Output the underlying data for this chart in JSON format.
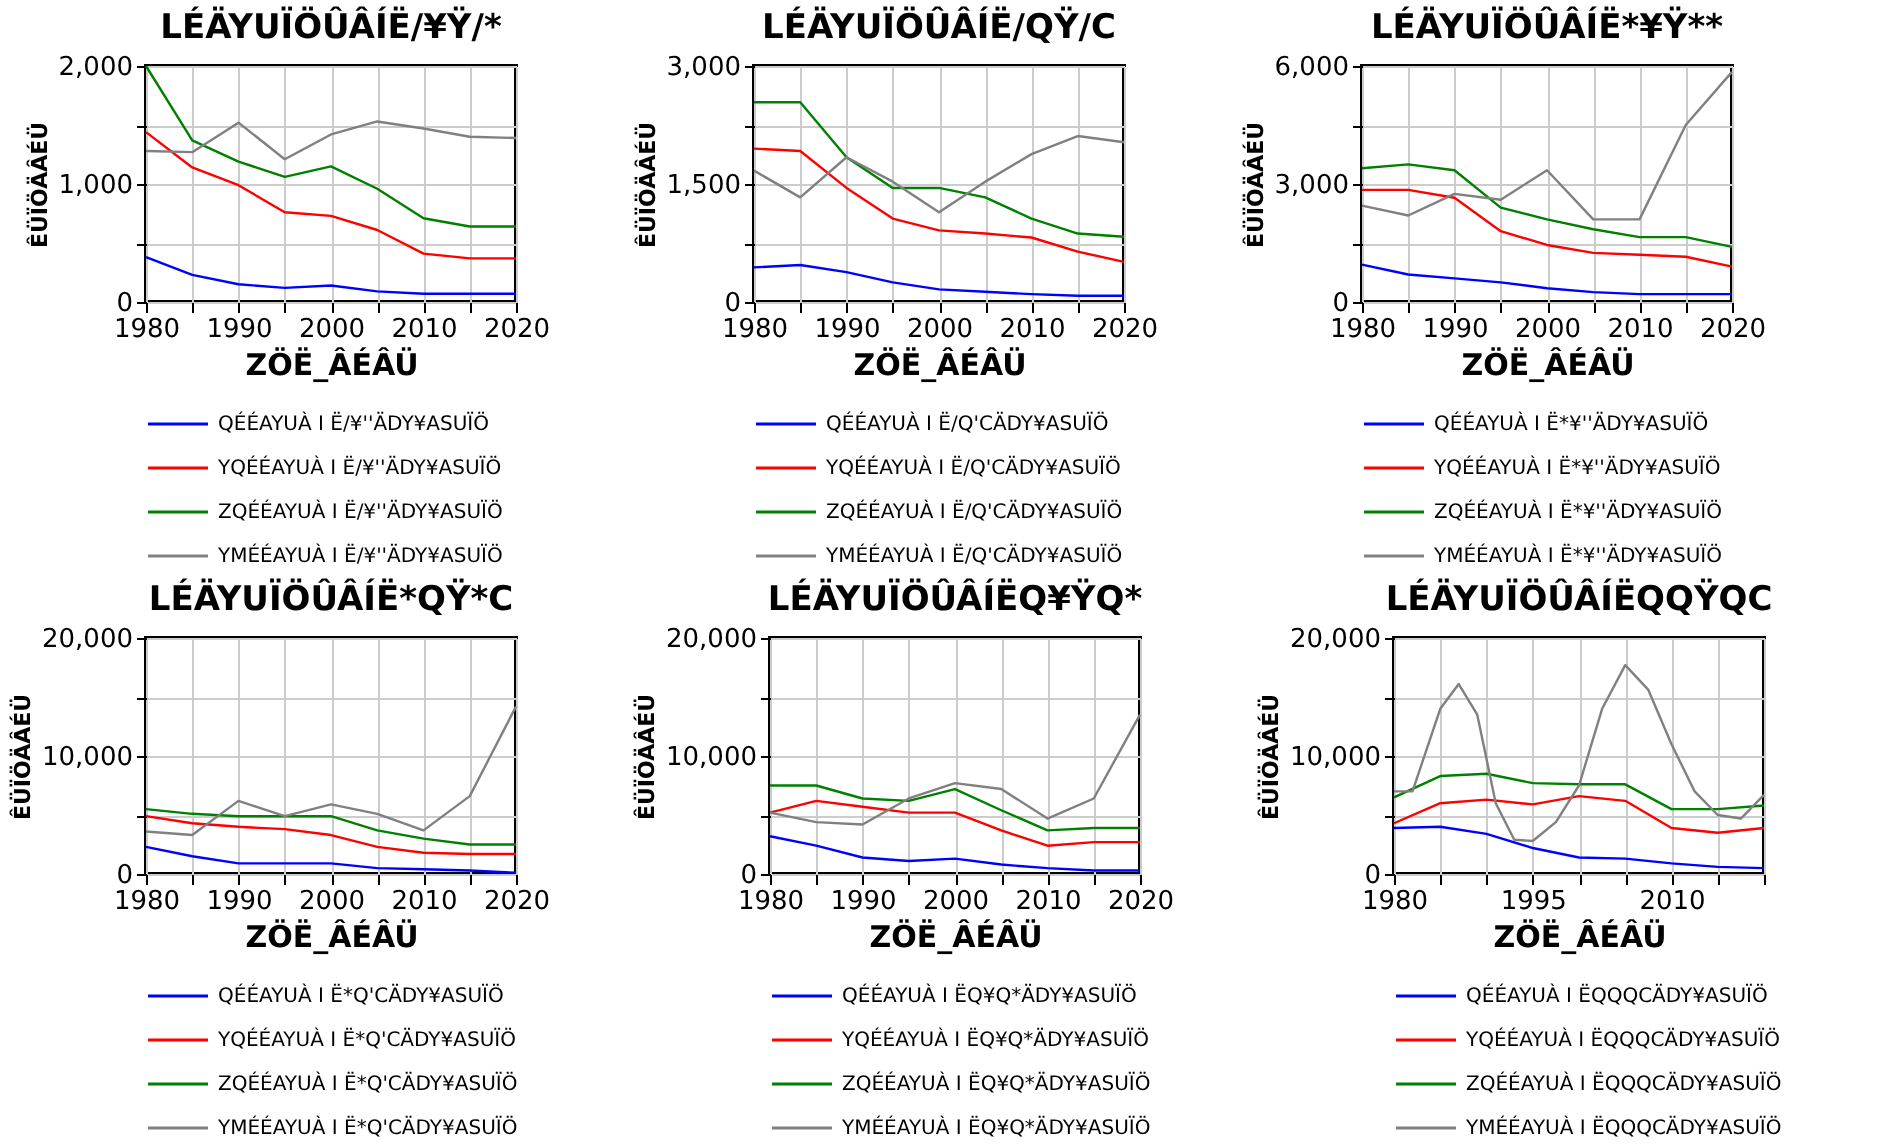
{
  "chart_data": [
    {
      "type": "line",
      "title": "LÉÄYUÏÖÛÂÍË/¥Ÿ/*",
      "xlabel": "ZÖË_ÂÉÂÜ",
      "ylabel": "ÊÜÏÖÄÂÉÜ",
      "grid": true,
      "legend": "bottom",
      "line_style": "solid",
      "x": [
        1980,
        1985,
        1990,
        1995,
        2000,
        2005,
        2010,
        2015,
        2020
      ],
      "xlim": [
        1980,
        2020
      ],
      "xticks": [
        1980,
        {
          "value": 1985,
          "label": null
        },
        1990,
        {
          "value": 1995,
          "label": null
        },
        2000,
        {
          "value": 2005,
          "label": null
        },
        2010,
        {
          "value": 2015,
          "label": null
        },
        2020
      ],
      "ylim": [
        0,
        2000
      ],
      "yticks": [
        0,
        {
          "value": 500,
          "label": null
        },
        {
          "value": 1000,
          "label": "1,000"
        },
        {
          "value": 1500,
          "label": null
        },
        {
          "value": 2000,
          "label": "2,000"
        }
      ],
      "series": [
        {
          "name": "QÉÉAYUÀ I Ë/¥''ÄDY¥ASUÏÖ",
          "color": "#0000ff",
          "values": [
            380,
            230,
            150,
            120,
            140,
            90,
            70,
            70,
            70
          ]
        },
        {
          "name": "YQÉÉAYUÀ I Ë/¥''ÄDY¥ASUÏÖ",
          "color": "#ff0000",
          "values": [
            1440,
            1140,
            990,
            760,
            730,
            610,
            410,
            370,
            370
          ]
        },
        {
          "name": "ZQÉÉAYUÀ I Ë/¥''ÄDY¥ASUÏÖ",
          "color": "#008000",
          "values": [
            2000,
            1370,
            1190,
            1060,
            1150,
            960,
            710,
            640,
            640
          ]
        },
        {
          "name": "YMÉÉAYUÀ I Ë/¥''ÄDY¥ASUÏÖ",
          "color": "#808080",
          "values": [
            1280,
            1270,
            1520,
            1210,
            1420,
            1530,
            1470,
            1400,
            1390
          ]
        }
      ]
    },
    {
      "type": "line",
      "title": "LÉÄYUÏÖÛÂÍË/QŸ/C",
      "xlabel": "ZÖË_ÂÉÂÜ",
      "ylabel": "ÊÜÏÖÄÂÉÜ",
      "grid": true,
      "legend": "bottom",
      "line_style": "solid",
      "x": [
        1980,
        1985,
        1990,
        1995,
        2000,
        2005,
        2010,
        2015,
        2020
      ],
      "xlim": [
        1980,
        2020
      ],
      "xticks": [
        1980,
        {
          "value": 1985,
          "label": null
        },
        1990,
        {
          "value": 1995,
          "label": null
        },
        2000,
        {
          "value": 2005,
          "label": null
        },
        2010,
        {
          "value": 2015,
          "label": null
        },
        2020
      ],
      "ylim": [
        0,
        3000
      ],
      "yticks": [
        0,
        {
          "value": 750,
          "label": null
        },
        {
          "value": 1500,
          "label": "1,500"
        },
        {
          "value": 2250,
          "label": null
        },
        {
          "value": 3000,
          "label": "3,000"
        }
      ],
      "series": [
        {
          "name": "QÉÉAYUÀ I Ë/Q'CÄDY¥ASUÏÖ",
          "color": "#0000ff",
          "values": [
            440,
            470,
            380,
            250,
            160,
            130,
            100,
            80,
            80
          ]
        },
        {
          "name": "YQÉÉAYUÀ I Ë/Q'CÄDY¥ASUÏÖ",
          "color": "#ff0000",
          "values": [
            1950,
            1920,
            1450,
            1060,
            910,
            870,
            820,
            640,
            510
          ]
        },
        {
          "name": "ZQÉÉAYUÀ I Ë/Q'CÄDY¥ASUÏÖ",
          "color": "#008000",
          "values": [
            2540,
            2540,
            1840,
            1450,
            1450,
            1330,
            1060,
            870,
            830
          ]
        },
        {
          "name": "YMÉÉAYUÀ I Ë/Q'CÄDY¥ASUÏÖ",
          "color": "#808080",
          "values": [
            1670,
            1330,
            1840,
            1530,
            1140,
            1530,
            1880,
            2110,
            2030
          ]
        }
      ]
    },
    {
      "type": "line",
      "title": "LÉÄYUÏÖÛÂÍË*¥Ÿ**",
      "xlabel": "ZÖË_ÂÉÂÜ",
      "ylabel": "ÊÜÏÖÄÂÉÜ",
      "grid": true,
      "legend": "bottom",
      "line_style": "solid",
      "x": [
        1980,
        1985,
        1990,
        1995,
        2000,
        2005,
        2010,
        2015,
        2020
      ],
      "xlim": [
        1980,
        2020
      ],
      "xticks": [
        1980,
        {
          "value": 1985,
          "label": null
        },
        1990,
        {
          "value": 1995,
          "label": null
        },
        2000,
        {
          "value": 2005,
          "label": null
        },
        2010,
        {
          "value": 2015,
          "label": null
        },
        2020
      ],
      "ylim": [
        0,
        6000
      ],
      "yticks": [
        0,
        {
          "value": 1500,
          "label": null
        },
        {
          "value": 3000,
          "label": "3,000"
        },
        {
          "value": 4500,
          "label": null
        },
        {
          "value": 6000,
          "label": "6,000"
        }
      ],
      "series": [
        {
          "name": "QÉÉAYUÀ I Ë*¥''ÄDY¥ASUÏÖ",
          "color": "#0000ff",
          "values": [
            950,
            700,
            600,
            500,
            350,
            250,
            200,
            200,
            200
          ]
        },
        {
          "name": "YQÉÉAYUÀ I Ë*¥''ÄDY¥ASUÏÖ",
          "color": "#ff0000",
          "values": [
            2850,
            2850,
            2650,
            1800,
            1450,
            1250,
            1200,
            1150,
            900
          ]
        },
        {
          "name": "ZQÉÉAYUÀ I Ë*¥''ÄDY¥ASUÏÖ",
          "color": "#008000",
          "values": [
            3400,
            3500,
            3350,
            2400,
            2100,
            1850,
            1650,
            1650,
            1400
          ]
        },
        {
          "name": "YMÉÉAYUÀ I Ë*¥''ÄDY¥ASUÏÖ",
          "color": "#808080",
          "values": [
            2450,
            2200,
            2750,
            2600,
            3350,
            2100,
            2100,
            4500,
            5850
          ]
        }
      ]
    },
    {
      "type": "line",
      "title": "LÉÄYUÏÖÛÂÍË*QŸ*C",
      "xlabel": "ZÖË_ÂÉÂÜ",
      "ylabel": "ÊÜÏÖÄÂÉÜ",
      "grid": true,
      "legend": "bottom",
      "line_style": "solid",
      "x": [
        1980,
        1985,
        1990,
        1995,
        2000,
        2005,
        2010,
        2015,
        2020
      ],
      "xlim": [
        1980,
        2020
      ],
      "xticks": [
        1980,
        {
          "value": 1985,
          "label": null
        },
        1990,
        {
          "value": 1995,
          "label": null
        },
        2000,
        {
          "value": 2005,
          "label": null
        },
        2010,
        {
          "value": 2015,
          "label": null
        },
        2020
      ],
      "ylim": [
        0,
        20000
      ],
      "yticks": [
        0,
        {
          "value": 5000,
          "label": null
        },
        {
          "value": 10000,
          "label": "10,000"
        },
        {
          "value": 15000,
          "label": null
        },
        {
          "value": 20000,
          "label": "20,000"
        }
      ],
      "series": [
        {
          "name": "QÉÉAYUÀ I Ë*Q'CÄDY¥ASUÏÖ",
          "color": "#0000ff",
          "values": [
            2300,
            1500,
            900,
            900,
            900,
            500,
            400,
            300,
            100
          ]
        },
        {
          "name": "YQÉÉAYUÀ I Ë*Q'CÄDY¥ASUÏÖ",
          "color": "#ff0000",
          "values": [
            4900,
            4300,
            4000,
            3800,
            3300,
            2300,
            1800,
            1700,
            1700
          ]
        },
        {
          "name": "ZQÉÉAYUÀ I Ë*Q'CÄDY¥ASUÏÖ",
          "color": "#008000",
          "values": [
            5500,
            5100,
            4900,
            4900,
            4900,
            3700,
            3000,
            2500,
            2500
          ]
        },
        {
          "name": "YMÉÉAYUÀ I Ë*Q'CÄDY¥ASUÏÖ",
          "color": "#808080",
          "values": [
            3600,
            3300,
            6200,
            4900,
            5900,
            5100,
            3700,
            6600,
            14200
          ]
        }
      ]
    },
    {
      "type": "line",
      "title": "LÉÄYUÏÖÛÂÍËQ¥ŸQ*",
      "xlabel": "ZÖË_ÂÉÂÜ",
      "ylabel": "ÊÜÏÖÄÂÉÜ",
      "grid": true,
      "legend": "bottom",
      "line_style": "solid",
      "x": [
        1980,
        1985,
        1990,
        1995,
        2000,
        2005,
        2010,
        2015,
        2020
      ],
      "xlim": [
        1980,
        2020
      ],
      "xticks": [
        1980,
        {
          "value": 1985,
          "label": null
        },
        1990,
        {
          "value": 1995,
          "label": null
        },
        2000,
        {
          "value": 2005,
          "label": null
        },
        2010,
        {
          "value": 2015,
          "label": null
        },
        2020
      ],
      "ylim": [
        0,
        20000
      ],
      "yticks": [
        0,
        {
          "value": 5000,
          "label": null
        },
        {
          "value": 10000,
          "label": "10,000"
        },
        {
          "value": 15000,
          "label": null
        },
        {
          "value": 20000,
          "label": "20,000"
        }
      ],
      "series": [
        {
          "name": "QÉÉAYUÀ I ËQ¥Q*ÄDY¥ASUÏÖ",
          "color": "#0000ff",
          "values": [
            3200,
            2400,
            1400,
            1100,
            1300,
            800,
            500,
            300,
            300
          ]
        },
        {
          "name": "YQÉÉAYUÀ I ËQ¥Q*ÄDY¥ASUÏÖ",
          "color": "#ff0000",
          "values": [
            5200,
            6200,
            5700,
            5200,
            5200,
            3700,
            2400,
            2700,
            2700
          ]
        },
        {
          "name": "ZQÉÉAYUÀ I ËQ¥Q*ÄDY¥ASUÏÖ",
          "color": "#008000",
          "values": [
            7500,
            7500,
            6400,
            6200,
            7200,
            5400,
            3700,
            3900,
            3900
          ]
        },
        {
          "name": "YMÉÉAYUÀ I ËQ¥Q*ÄDY¥ASUÏÖ",
          "color": "#808080",
          "values": [
            5200,
            4400,
            4200,
            6400,
            7700,
            7200,
            4700,
            6400,
            13500
          ]
        }
      ]
    },
    {
      "type": "line",
      "title": "LÉÄYUÏÖÛÂÍËQQŸQC",
      "xlabel": "ZÖË_ÂÉÂÜ",
      "ylabel": "ÊÜÏÖÄÂÉÜ",
      "grid": true,
      "legend": "bottom",
      "line_style": "solid",
      "x": [
        1980,
        1985,
        1990,
        1995,
        2000,
        2005,
        2010,
        2015,
        2020
      ],
      "xlim": [
        1980,
        2020
      ],
      "xticks": [
        1980,
        {
          "value": 1985,
          "label": null
        },
        {
          "value": 1990,
          "label": null
        },
        1995,
        {
          "value": 2000,
          "label": null
        },
        {
          "value": 2005,
          "label": null
        },
        2010,
        {
          "value": 2015,
          "label": null
        },
        {
          "value": 2020,
          "label": null
        }
      ],
      "ylim": [
        0,
        20000
      ],
      "yticks": [
        0,
        {
          "value": 5000,
          "label": null
        },
        {
          "value": 10000,
          "label": "10,000"
        },
        {
          "value": 15000,
          "label": null
        },
        {
          "value": 20000,
          "label": "20,000"
        }
      ],
      "series": [
        {
          "name": "QÉÉAYUÀ I ËQQQCÄDY¥ASUÏÖ",
          "color": "#0000ff",
          "values": [
            3900,
            4000,
            3400,
            2200,
            1400,
            1300,
            900,
            600,
            500
          ]
        },
        {
          "name": "YQÉÉAYUÀ I ËQQQCÄDY¥ASUÏÖ",
          "color": "#ff0000",
          "values": [
            4300,
            6000,
            6300,
            5900,
            6600,
            6200,
            3900,
            3500,
            3900
          ]
        },
        {
          "name": "ZQÉÉAYUÀ I ËQQQCÄDY¥ASUÏÖ",
          "color": "#008000",
          "values": [
            6500,
            8300,
            8500,
            7700,
            7600,
            7600,
            5500,
            5500,
            5800
          ]
        },
        {
          "name": "YMÉÉAYUÀ I ËQQQCÄDY¥ASUÏÖ",
          "color": "#808080",
          "x": [
            1980,
            1982,
            1985,
            1987,
            1989,
            1991,
            1993,
            1995,
            1997.5,
            2000,
            2002.5,
            2005,
            2007.5,
            2010,
            2012.5,
            2015,
            2017.5,
            2020
          ],
          "values": [
            7000,
            7000,
            14000,
            16100,
            13500,
            6000,
            2900,
            2800,
            4400,
            7500,
            14000,
            17700,
            15600,
            11000,
            7000,
            5000,
            4700,
            6700
          ]
        }
      ]
    }
  ]
}
